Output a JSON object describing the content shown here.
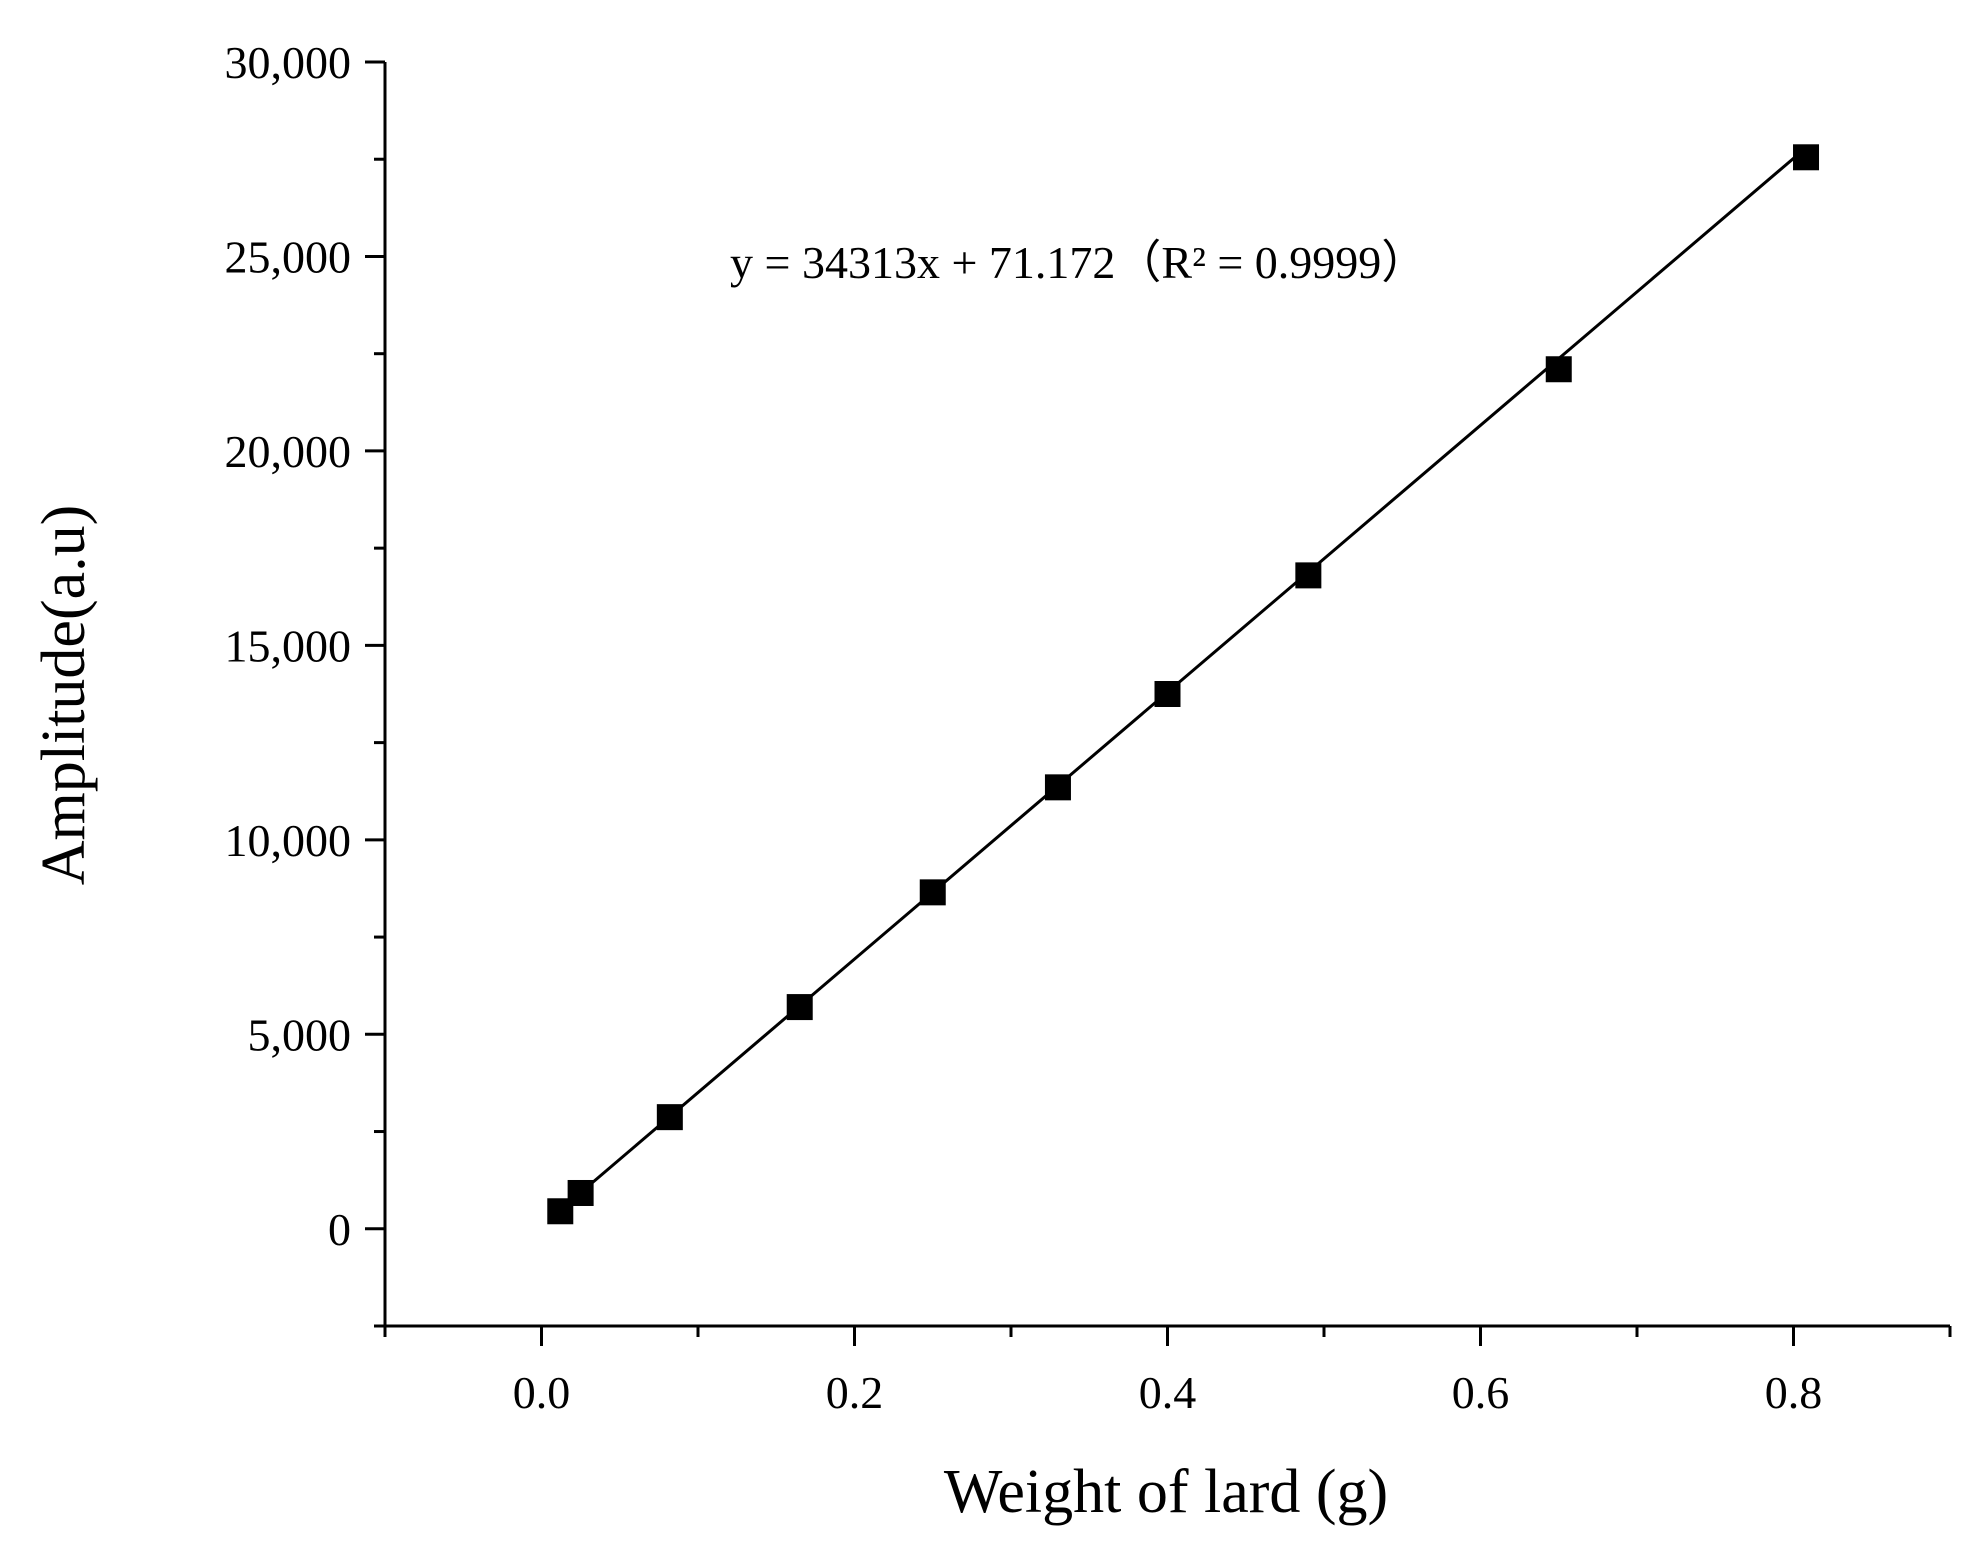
{
  "chart_data": {
    "type": "scatter",
    "xlabel": "Weight of lard (g)",
    "ylabel": "Amplitude(a.u)",
    "xlim": [
      -0.1,
      0.9
    ],
    "ylim": [
      -2500,
      30000
    ],
    "x_ticks": [
      0.0,
      0.2,
      0.4,
      0.6,
      0.8
    ],
    "x_tick_labels": [
      "0.0",
      "0.2",
      "0.4",
      "0.6",
      "0.8"
    ],
    "x_minor_ticks": [
      -0.1,
      0.1,
      0.3,
      0.5,
      0.7,
      0.9
    ],
    "y_ticks": [
      0,
      5000,
      10000,
      15000,
      20000,
      25000,
      30000
    ],
    "y_tick_labels": [
      "0",
      "5,000",
      "10,000",
      "15,000",
      "20,000",
      "25,000",
      "30,000"
    ],
    "y_minor_ticks": [
      -2500,
      2500,
      7500,
      12500,
      17500,
      22500,
      27500
    ],
    "grid": false,
    "legend": "none",
    "marker": "square",
    "marker_color": "#000000",
    "series": [
      {
        "x": [
          0.012,
          0.025,
          0.082,
          0.165,
          0.25,
          0.33,
          0.4,
          0.49,
          0.65,
          0.808
        ],
        "y": [
          450,
          920,
          2870,
          5700,
          8650,
          11350,
          13750,
          16800,
          22100,
          27550
        ]
      }
    ],
    "fit_line": {
      "slope": 34313,
      "intercept": 71.172,
      "x_range": [
        0.012,
        0.808
      ],
      "color": "#000000"
    },
    "annotation": "y = 34313x + 71.172（R² = 0.9999）"
  }
}
